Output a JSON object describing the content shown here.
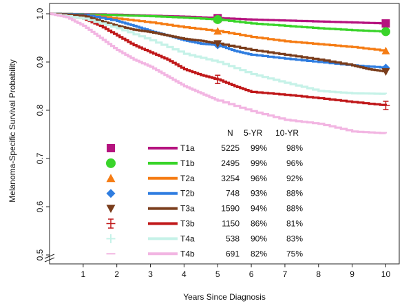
{
  "chart_data": {
    "type": "line",
    "xlabel": "Years Since Diagnosis",
    "ylabel": "Melanoma-Specific Survival Probability",
    "xlim": [
      0,
      10.4
    ],
    "ylim": [
      0.5,
      1.0
    ],
    "xticks": [
      "1",
      "2",
      "3",
      "4",
      "5",
      "6",
      "7",
      "8",
      "9",
      "10"
    ],
    "yticks": [
      "0.5",
      "0.6",
      "0.7",
      "0.8",
      "0.9",
      "1.0"
    ],
    "legend_headers": {
      "n": "N",
      "yr5": "5-YR",
      "yr10": "10-YR"
    },
    "series": [
      {
        "name": "T1a",
        "n": "5225",
        "yr5": "99%",
        "yr10": "98%",
        "color": "#b5137f",
        "marker": "square",
        "points": [
          [
            0,
            1.0
          ],
          [
            2,
            0.998
          ],
          [
            3,
            0.996
          ],
          [
            4,
            0.994
          ],
          [
            5,
            0.991
          ],
          [
            6,
            0.988
          ],
          [
            7,
            0.986
          ],
          [
            8,
            0.984
          ],
          [
            9,
            0.982
          ],
          [
            10,
            0.98
          ]
        ]
      },
      {
        "name": "T1b",
        "n": "2495",
        "yr5": "99%",
        "yr10": "96%",
        "color": "#39d42a",
        "marker": "circle",
        "points": [
          [
            0,
            1.0
          ],
          [
            2,
            0.997
          ],
          [
            3,
            0.995
          ],
          [
            4,
            0.992
          ],
          [
            5,
            0.988
          ],
          [
            6,
            0.98
          ],
          [
            7,
            0.975
          ],
          [
            8,
            0.97
          ],
          [
            9,
            0.966
          ],
          [
            10,
            0.963
          ]
        ]
      },
      {
        "name": "T2a",
        "n": "3254",
        "yr5": "96%",
        "yr10": "92%",
        "color": "#f57c14",
        "marker": "triangle-up",
        "points": [
          [
            0,
            1.0
          ],
          [
            1,
            0.998
          ],
          [
            2,
            0.99
          ],
          [
            3,
            0.982
          ],
          [
            4,
            0.972
          ],
          [
            5,
            0.964
          ],
          [
            6,
            0.952
          ],
          [
            7,
            0.943
          ],
          [
            8,
            0.937
          ],
          [
            9,
            0.931
          ],
          [
            10,
            0.923
          ]
        ]
      },
      {
        "name": "T2b",
        "n": "748",
        "yr5": "93%",
        "yr10": "88%",
        "color": "#2f7de0",
        "marker": "diamond",
        "points": [
          [
            0,
            1.0
          ],
          [
            1,
            0.998
          ],
          [
            2,
            0.985
          ],
          [
            2.5,
            0.975
          ],
          [
            3,
            0.964
          ],
          [
            3.5,
            0.955
          ],
          [
            4,
            0.945
          ],
          [
            4.5,
            0.938
          ],
          [
            5,
            0.935
          ],
          [
            5.5,
            0.923
          ],
          [
            6,
            0.915
          ],
          [
            7,
            0.907
          ],
          [
            8,
            0.9
          ],
          [
            9,
            0.893
          ],
          [
            10,
            0.888
          ]
        ]
      },
      {
        "name": "T3a",
        "n": "1590",
        "yr5": "94%",
        "yr10": "88%",
        "color": "#7a3d1c",
        "marker": "triangle-down",
        "points": [
          [
            0,
            1.0
          ],
          [
            1,
            0.996
          ],
          [
            1.5,
            0.985
          ],
          [
            2,
            0.975
          ],
          [
            2.5,
            0.967
          ],
          [
            3,
            0.962
          ],
          [
            3.5,
            0.955
          ],
          [
            4,
            0.948
          ],
          [
            4.5,
            0.944
          ],
          [
            5,
            0.938
          ],
          [
            6,
            0.925
          ],
          [
            7,
            0.915
          ],
          [
            8,
            0.905
          ],
          [
            9,
            0.893
          ],
          [
            9.5,
            0.885
          ],
          [
            10,
            0.88
          ]
        ]
      },
      {
        "name": "T3b",
        "n": "1150",
        "yr5": "86%",
        "yr10": "81%",
        "color": "#c0181a",
        "marker": "errorbar",
        "points": [
          [
            0,
            1.0
          ],
          [
            1,
            0.99
          ],
          [
            1.5,
            0.975
          ],
          [
            2,
            0.955
          ],
          [
            2.5,
            0.935
          ],
          [
            3,
            0.92
          ],
          [
            3.5,
            0.905
          ],
          [
            4,
            0.885
          ],
          [
            4.5,
            0.873
          ],
          [
            5,
            0.864
          ],
          [
            5.5,
            0.85
          ],
          [
            6,
            0.838
          ],
          [
            7,
            0.832
          ],
          [
            8,
            0.825
          ],
          [
            9,
            0.817
          ],
          [
            10,
            0.81
          ]
        ]
      },
      {
        "name": "T4a",
        "n": "538",
        "yr5": "90%",
        "yr10": "83%",
        "color": "#c6f2e8",
        "marker": "cross",
        "points": [
          [
            0,
            1.0
          ],
          [
            1,
            0.99
          ],
          [
            2,
            0.97
          ],
          [
            3,
            0.945
          ],
          [
            4,
            0.917
          ],
          [
            5,
            0.9
          ],
          [
            6,
            0.875
          ],
          [
            7,
            0.857
          ],
          [
            8,
            0.84
          ],
          [
            9,
            0.835
          ],
          [
            10,
            0.834
          ]
        ]
      },
      {
        "name": "T4b",
        "n": "691",
        "yr5": "82%",
        "yr10": "75%",
        "color": "#f2b5e2",
        "marker": "dash",
        "points": [
          [
            0,
            1.0
          ],
          [
            0.5,
            0.993
          ],
          [
            1,
            0.975
          ],
          [
            1.5,
            0.95
          ],
          [
            2,
            0.925
          ],
          [
            2.5,
            0.905
          ],
          [
            3,
            0.89
          ],
          [
            3.5,
            0.87
          ],
          [
            4,
            0.85
          ],
          [
            4.5,
            0.835
          ],
          [
            5,
            0.82
          ],
          [
            6,
            0.798
          ],
          [
            7,
            0.78
          ],
          [
            8,
            0.772
          ],
          [
            9,
            0.756
          ],
          [
            10,
            0.752
          ]
        ]
      }
    ]
  }
}
